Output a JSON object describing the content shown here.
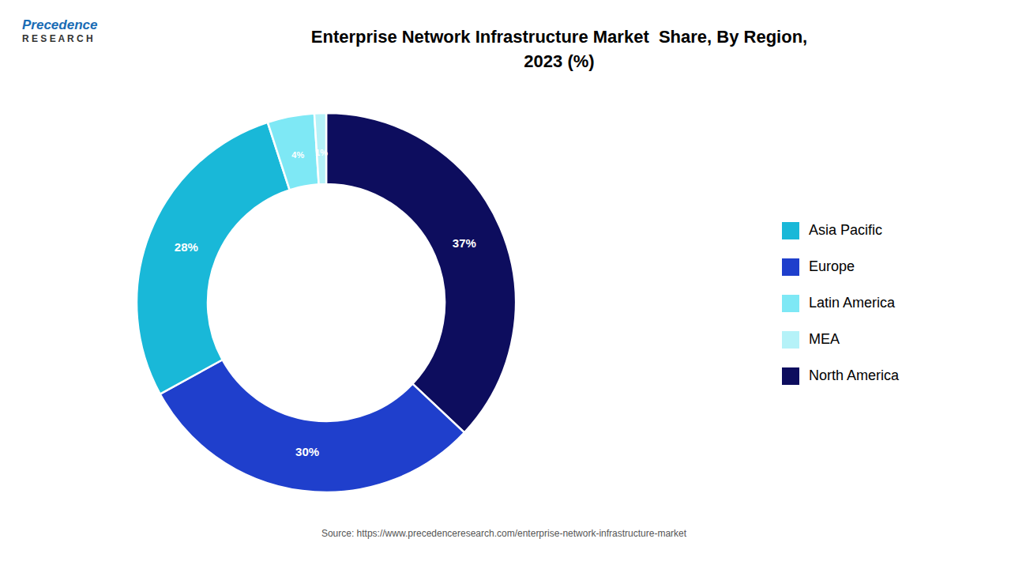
{
  "chart_data": {
    "type": "pie",
    "title": "Enterprise Network Infrastructure Market  Share, By Region,\n2023 (%)",
    "categories": [
      "North America",
      "Europe",
      "Asia Pacific",
      "Latin America",
      "MEA"
    ],
    "values": [
      37,
      30,
      28,
      4,
      1
    ],
    "value_labels": [
      "37%",
      "30%",
      "28%",
      "4%",
      "1%"
    ],
    "colors": [
      "#0d0d5e",
      "#1f3fcc",
      "#19b8d8",
      "#7ee8f5",
      "#b5f2f8"
    ],
    "data_labels": true,
    "legend": "right",
    "annotations": [
      "Precedence",
      "R E S E A R C H",
      "Source: https://www.precedenceresearch.com/enterprise-network-infrastructure-market"
    ]
  }
}
